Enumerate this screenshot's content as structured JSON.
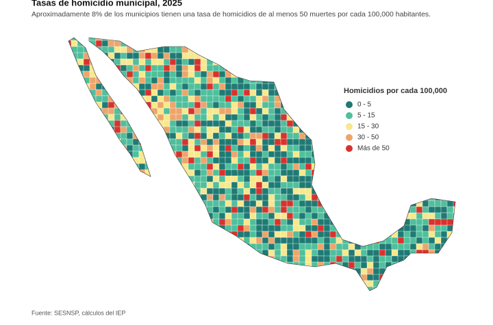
{
  "header": {
    "title": "Tasas de homicidio municipal, 2025",
    "subtitle": "Aproximadamente 8% de los municipios tienen una tasa de homicidios de al menos 50 muertes por cada 100,000 habitantes."
  },
  "legend": {
    "title": "Homicidios por cada 100,000",
    "items": [
      {
        "label": "0 - 5",
        "color": "#1f7a74"
      },
      {
        "label": "5 - 15",
        "color": "#4fbf9c"
      },
      {
        "label": "15 - 30",
        "color": "#f7e88c"
      },
      {
        "label": "30 - 50",
        "color": "#eea56a"
      },
      {
        "label": "Más de 50",
        "color": "#d9322d"
      }
    ]
  },
  "source": "Fuente: SESNSP, cálculos del IEP"
}
